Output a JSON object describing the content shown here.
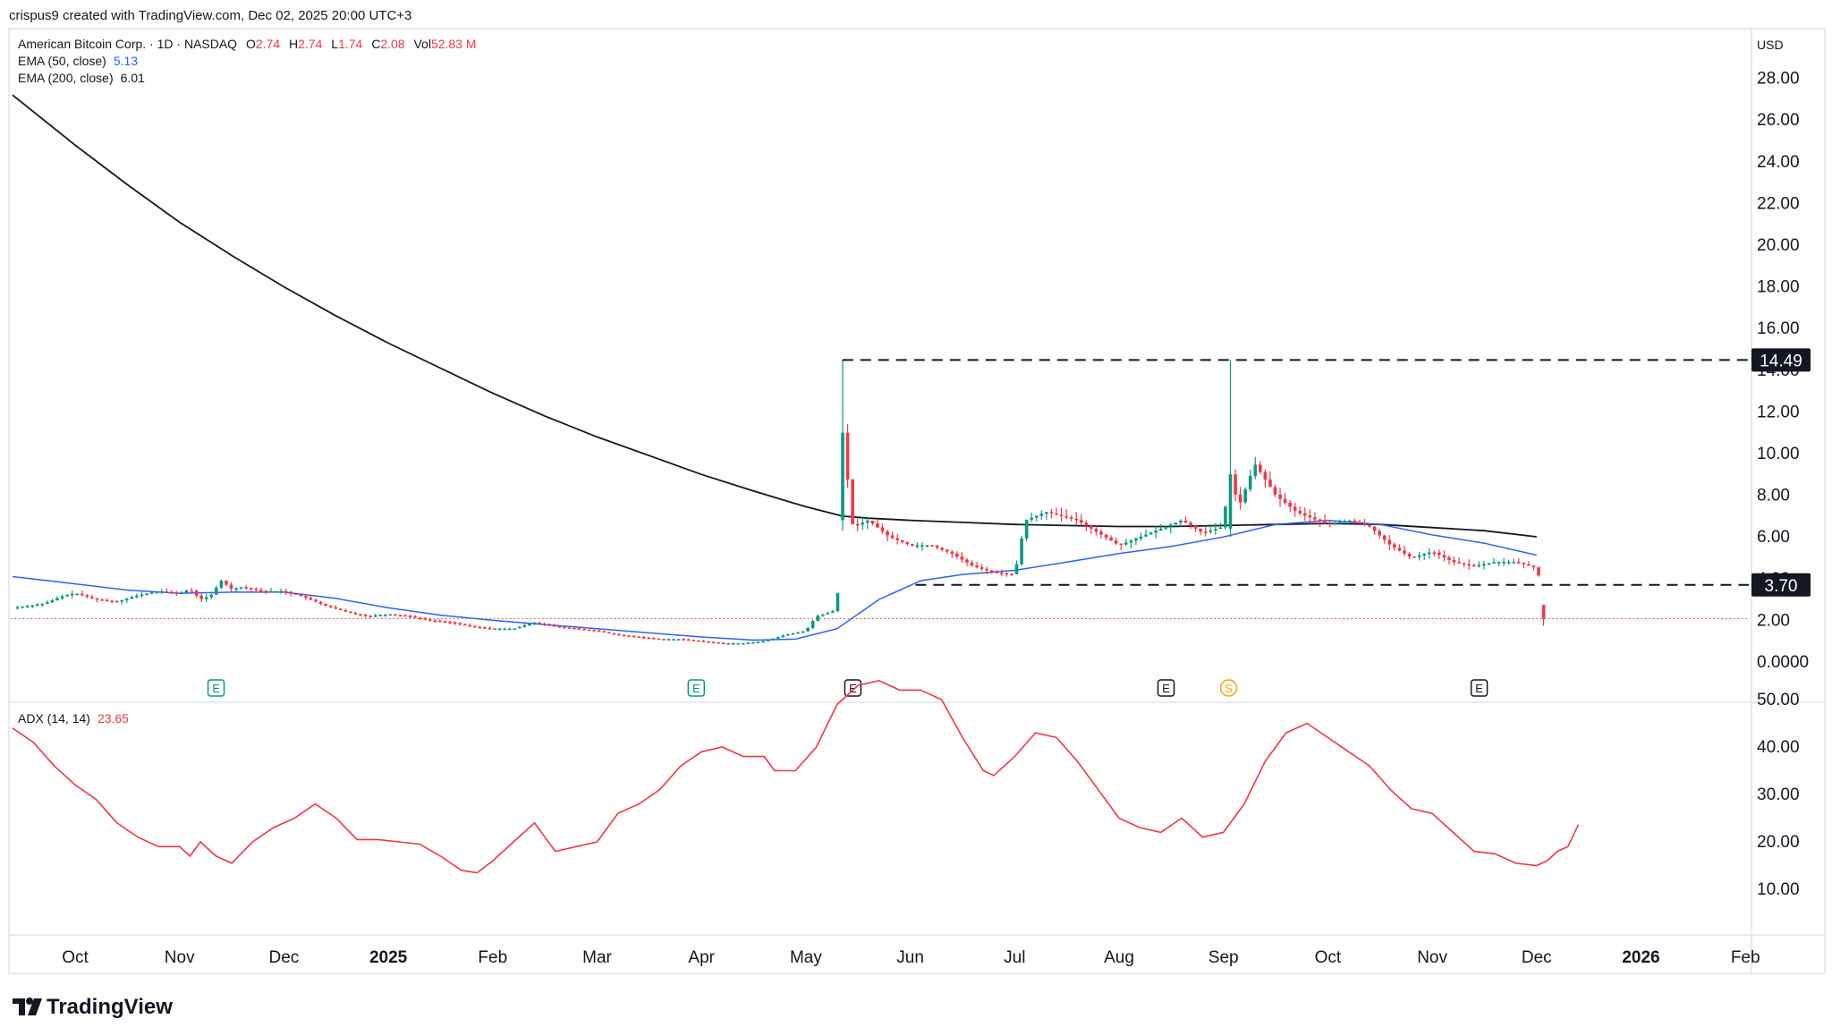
{
  "header": {
    "attribution": "crispus9 created with TradingView.com, Dec 02, 2025 20:00 UTC+3"
  },
  "legend": {
    "symbol": "American Bitcoin Corp. · 1D · NASDAQ",
    "o_label": "O",
    "o_value": "2.74",
    "h_label": "H",
    "h_value": "2.74",
    "l_label": "L",
    "l_value": "1.74",
    "c_label": "C",
    "c_value": "2.08",
    "vol_label": "Vol",
    "vol_value": "52.83 M",
    "ema50_label": "EMA (50, close)",
    "ema50_value": "5.13",
    "ema200_label": "EMA (200, close)",
    "ema200_value": "6.01"
  },
  "price_axis": {
    "currency": "USD"
  },
  "adx_legend": {
    "label": "ADX (14, 14)",
    "value": "23.65"
  },
  "footer": {
    "brand": "TradingView"
  },
  "colors": {
    "up": "#089981",
    "down": "#f23645",
    "ema50": "#2962ff",
    "ema200": "#131722",
    "adx": "#f23645"
  },
  "chart_data": [
    {
      "type": "candlestick",
      "title": "American Bitcoin Corp. · 1D · NASDAQ",
      "x_ticks": [
        {
          "label": "Oct",
          "t": 0.0,
          "bold": false
        },
        {
          "label": "Nov",
          "t": 1.0,
          "bold": false
        },
        {
          "label": "Dec",
          "t": 2.0,
          "bold": false
        },
        {
          "label": "2025",
          "t": 3.0,
          "bold": true
        },
        {
          "label": "Feb",
          "t": 4.0,
          "bold": false
        },
        {
          "label": "Mar",
          "t": 5.0,
          "bold": false
        },
        {
          "label": "Apr",
          "t": 6.0,
          "bold": false
        },
        {
          "label": "May",
          "t": 7.0,
          "bold": false
        },
        {
          "label": "Jun",
          "t": 8.0,
          "bold": false
        },
        {
          "label": "Jul",
          "t": 9.0,
          "bold": false
        },
        {
          "label": "Aug",
          "t": 10.0,
          "bold": false
        },
        {
          "label": "Sep",
          "t": 11.0,
          "bold": false
        },
        {
          "label": "Oct",
          "t": 12.0,
          "bold": false
        },
        {
          "label": "Nov",
          "t": 13.0,
          "bold": false
        },
        {
          "label": "Dec",
          "t": 14.0,
          "bold": false
        },
        {
          "label": "2026",
          "t": 15.0,
          "bold": true
        },
        {
          "label": "Feb",
          "t": 16.0,
          "bold": false
        }
      ],
      "y_ticks": [
        "28.00",
        "26.00",
        "24.00",
        "22.00",
        "20.00",
        "18.00",
        "16.00",
        "14.00",
        "12.00",
        "10.00",
        "8.00",
        "6.00",
        "4.00",
        "2.00",
        "0.0000"
      ],
      "ylim": [
        0,
        28
      ],
      "x_range_months": [
        -0.6,
        16.9
      ],
      "price_series": [
        [
          -0.6,
          2.6
        ],
        [
          -0.3,
          2.8
        ],
        [
          -0.1,
          3.2
        ],
        [
          0.0,
          3.3
        ],
        [
          0.2,
          3.0
        ],
        [
          0.4,
          2.9
        ],
        [
          0.6,
          3.2
        ],
        [
          0.8,
          3.4
        ],
        [
          1.0,
          3.3
        ],
        [
          1.1,
          3.5
        ],
        [
          1.2,
          3.0
        ],
        [
          1.3,
          3.2
        ],
        [
          1.4,
          3.9
        ],
        [
          1.5,
          3.5
        ],
        [
          1.6,
          3.6
        ],
        [
          1.8,
          3.4
        ],
        [
          2.0,
          3.4
        ],
        [
          2.2,
          3.1
        ],
        [
          2.4,
          2.7
        ],
        [
          2.6,
          2.4
        ],
        [
          2.8,
          2.2
        ],
        [
          3.0,
          2.3
        ],
        [
          3.2,
          2.2
        ],
        [
          3.4,
          2.0
        ],
        [
          3.6,
          1.9
        ],
        [
          3.8,
          1.7
        ],
        [
          4.0,
          1.6
        ],
        [
          4.2,
          1.6
        ],
        [
          4.4,
          1.9
        ],
        [
          4.6,
          1.7
        ],
        [
          4.8,
          1.6
        ],
        [
          5.0,
          1.5
        ],
        [
          5.2,
          1.3
        ],
        [
          5.4,
          1.2
        ],
        [
          5.6,
          1.1
        ],
        [
          5.8,
          1.1
        ],
        [
          6.0,
          1.0
        ],
        [
          6.2,
          0.9
        ],
        [
          6.4,
          0.9
        ],
        [
          6.6,
          1.0
        ],
        [
          6.8,
          1.3
        ],
        [
          7.0,
          1.5
        ],
        [
          7.1,
          2.2
        ],
        [
          7.3,
          2.5
        ],
        [
          7.35,
          11.0
        ],
        [
          7.45,
          6.5
        ],
        [
          7.6,
          6.8
        ],
        [
          7.8,
          6.0
        ],
        [
          8.0,
          5.6
        ],
        [
          8.2,
          5.6
        ],
        [
          8.4,
          5.2
        ],
        [
          8.6,
          4.6
        ],
        [
          8.8,
          4.3
        ],
        [
          9.0,
          4.2
        ],
        [
          9.1,
          6.8
        ],
        [
          9.3,
          7.2
        ],
        [
          9.6,
          6.8
        ],
        [
          9.8,
          6.2
        ],
        [
          10.0,
          5.6
        ],
        [
          10.2,
          6.0
        ],
        [
          10.4,
          6.4
        ],
        [
          10.6,
          6.8
        ],
        [
          10.8,
          6.2
        ],
        [
          11.0,
          6.5
        ],
        [
          11.05,
          9.0
        ],
        [
          11.15,
          7.5
        ],
        [
          11.3,
          9.5
        ],
        [
          11.5,
          8.0
        ],
        [
          11.7,
          7.2
        ],
        [
          11.9,
          6.8
        ],
        [
          12.0,
          6.6
        ],
        [
          12.2,
          6.8
        ],
        [
          12.4,
          6.5
        ],
        [
          12.6,
          5.6
        ],
        [
          12.8,
          5.0
        ],
        [
          13.0,
          5.3
        ],
        [
          13.2,
          4.8
        ],
        [
          13.4,
          4.6
        ],
        [
          13.6,
          4.8
        ],
        [
          13.8,
          4.8
        ],
        [
          14.0,
          4.5
        ],
        [
          14.05,
          3.6
        ],
        [
          14.08,
          2.08
        ]
      ],
      "ema50": [
        [
          -0.6,
          4.1
        ],
        [
          0.0,
          3.75
        ],
        [
          0.5,
          3.45
        ],
        [
          1.0,
          3.3
        ],
        [
          1.5,
          3.35
        ],
        [
          2.0,
          3.35
        ],
        [
          2.5,
          3.05
        ],
        [
          3.0,
          2.6
        ],
        [
          3.5,
          2.25
        ],
        [
          4.0,
          2.0
        ],
        [
          4.5,
          1.8
        ],
        [
          5.0,
          1.6
        ],
        [
          5.5,
          1.4
        ],
        [
          6.0,
          1.2
        ],
        [
          6.5,
          1.05
        ],
        [
          6.9,
          1.1
        ],
        [
          7.3,
          1.6
        ],
        [
          7.7,
          3.0
        ],
        [
          8.1,
          3.9
        ],
        [
          8.5,
          4.2
        ],
        [
          9.0,
          4.4
        ],
        [
          9.5,
          4.8
        ],
        [
          10.0,
          5.2
        ],
        [
          10.5,
          5.55
        ],
        [
          11.0,
          6.0
        ],
        [
          11.5,
          6.6
        ],
        [
          12.0,
          6.8
        ],
        [
          12.5,
          6.6
        ],
        [
          13.0,
          6.1
        ],
        [
          13.5,
          5.7
        ],
        [
          14.0,
          5.13
        ]
      ],
      "ema200": [
        [
          -0.6,
          27.2
        ],
        [
          0.0,
          24.8
        ],
        [
          0.5,
          22.9
        ],
        [
          1.0,
          21.1
        ],
        [
          1.5,
          19.5
        ],
        [
          2.0,
          18.0
        ],
        [
          2.5,
          16.6
        ],
        [
          3.0,
          15.3
        ],
        [
          3.5,
          14.1
        ],
        [
          4.0,
          12.9
        ],
        [
          4.5,
          11.8
        ],
        [
          5.0,
          10.8
        ],
        [
          5.5,
          9.9
        ],
        [
          6.0,
          9.0
        ],
        [
          6.5,
          8.2
        ],
        [
          7.0,
          7.45
        ],
        [
          7.35,
          7.0
        ],
        [
          7.6,
          6.9
        ],
        [
          8.0,
          6.8
        ],
        [
          8.5,
          6.7
        ],
        [
          9.0,
          6.6
        ],
        [
          9.5,
          6.55
        ],
        [
          10.0,
          6.5
        ],
        [
          10.5,
          6.5
        ],
        [
          11.0,
          6.55
        ],
        [
          11.5,
          6.6
        ],
        [
          12.0,
          6.65
        ],
        [
          12.5,
          6.6
        ],
        [
          13.0,
          6.45
        ],
        [
          13.5,
          6.3
        ],
        [
          14.0,
          6.01
        ]
      ],
      "ohlc_readout": {
        "open": 2.74,
        "high": 2.74,
        "low": 1.74,
        "close": 2.08,
        "volume": "52.83 M"
      },
      "highlighted_levels": [
        {
          "label": "14.49",
          "value": 14.49,
          "from_t": 7.35,
          "style": "dashed"
        },
        {
          "label": "3.70",
          "value": 3.7,
          "from_t": 8.05,
          "style": "dashed"
        }
      ],
      "last_price_line": 2.08,
      "events": [
        {
          "label": "E",
          "t": 1.35,
          "kind": "earnings-reported"
        },
        {
          "label": "E",
          "t": 5.95,
          "kind": "earnings-reported"
        },
        {
          "label": "E",
          "t": 7.45,
          "kind": "earnings-upcoming"
        },
        {
          "label": "E",
          "t": 10.45,
          "kind": "earnings-upcoming"
        },
        {
          "label": "S",
          "t": 11.05,
          "kind": "split"
        },
        {
          "label": "E",
          "t": 13.45,
          "kind": "earnings-upcoming"
        }
      ]
    },
    {
      "type": "line",
      "title": "ADX (14, 14)",
      "y_ticks": [
        "50.00",
        "40.00",
        "30.00",
        "20.00",
        "10.00"
      ],
      "ylim": [
        10,
        56
      ],
      "series": [
        {
          "name": "ADX (14, 14)",
          "points": [
            [
              -0.6,
              44
            ],
            [
              -0.4,
              41
            ],
            [
              -0.2,
              36
            ],
            [
              0.0,
              32
            ],
            [
              0.2,
              29
            ],
            [
              0.4,
              24
            ],
            [
              0.6,
              21
            ],
            [
              0.8,
              19
            ],
            [
              1.0,
              19
            ],
            [
              1.1,
              17
            ],
            [
              1.2,
              20
            ],
            [
              1.35,
              17
            ],
            [
              1.5,
              15.5
            ],
            [
              1.7,
              20
            ],
            [
              1.9,
              23
            ],
            [
              2.1,
              25
            ],
            [
              2.3,
              28
            ],
            [
              2.5,
              25
            ],
            [
              2.7,
              20.5
            ],
            [
              2.9,
              20.5
            ],
            [
              3.1,
              20
            ],
            [
              3.3,
              19.5
            ],
            [
              3.5,
              17
            ],
            [
              3.7,
              14
            ],
            [
              3.85,
              13.5
            ],
            [
              4.0,
              16
            ],
            [
              4.2,
              20
            ],
            [
              4.4,
              24
            ],
            [
              4.6,
              18
            ],
            [
              4.8,
              19
            ],
            [
              5.0,
              20
            ],
            [
              5.2,
              26
            ],
            [
              5.4,
              28
            ],
            [
              5.6,
              31
            ],
            [
              5.8,
              36
            ],
            [
              6.0,
              39
            ],
            [
              6.2,
              40
            ],
            [
              6.4,
              38
            ],
            [
              6.6,
              38
            ],
            [
              6.7,
              35
            ],
            [
              6.9,
              35
            ],
            [
              7.1,
              40
            ],
            [
              7.3,
              49
            ],
            [
              7.5,
              53
            ],
            [
              7.7,
              54
            ],
            [
              7.9,
              52
            ],
            [
              8.1,
              52
            ],
            [
              8.3,
              50
            ],
            [
              8.5,
              42
            ],
            [
              8.7,
              35
            ],
            [
              8.8,
              34
            ],
            [
              9.0,
              38
            ],
            [
              9.2,
              43
            ],
            [
              9.4,
              42
            ],
            [
              9.6,
              37
            ],
            [
              9.8,
              31
            ],
            [
              10.0,
              25
            ],
            [
              10.2,
              23
            ],
            [
              10.4,
              22
            ],
            [
              10.6,
              25
            ],
            [
              10.8,
              21
            ],
            [
              11.0,
              22
            ],
            [
              11.2,
              28
            ],
            [
              11.4,
              37
            ],
            [
              11.6,
              43
            ],
            [
              11.8,
              45
            ],
            [
              12.0,
              42
            ],
            [
              12.2,
              39
            ],
            [
              12.4,
              36
            ],
            [
              12.6,
              31
            ],
            [
              12.8,
              27
            ],
            [
              13.0,
              26
            ],
            [
              13.2,
              22
            ],
            [
              13.4,
              18
            ],
            [
              13.6,
              17.5
            ],
            [
              13.8,
              15.5
            ],
            [
              14.0,
              15
            ],
            [
              14.1,
              16
            ],
            [
              14.2,
              18
            ],
            [
              14.3,
              19
            ],
            [
              14.4,
              23.65
            ]
          ]
        }
      ]
    }
  ]
}
